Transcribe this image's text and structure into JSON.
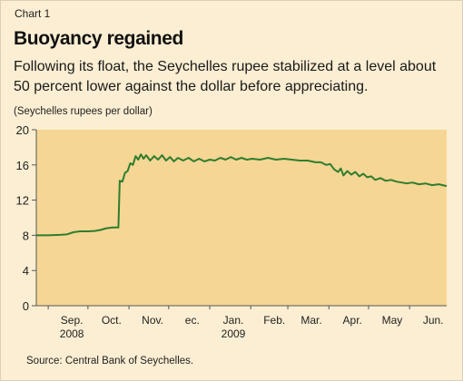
{
  "header": {
    "label": "Chart 1",
    "title": "Buoyancy regained",
    "subtitle": "Following its float, the Seychelles rupee stabilized at a level about 50 percent lower against the dollar before appreciating.",
    "unit": "(Seychelles rupees per dollar)"
  },
  "footer": {
    "source": "Source: Central Bank of Seychelles."
  },
  "colors": {
    "plot_bg": "#f6d694",
    "line": "#2e7d2e",
    "axis": "#555555"
  },
  "chart_data": {
    "type": "line",
    "ylabel": "(Seychelles rupees per dollar)",
    "ylim": [
      0,
      20
    ],
    "yticks": [
      0,
      4,
      8,
      12,
      16,
      20
    ],
    "xlim": [
      "2008-08-23",
      "2009-06-29"
    ],
    "xtick_labels": [
      {
        "date": "2008-09-01",
        "line1": "Sep.",
        "line2": "2008"
      },
      {
        "date": "2008-10-01",
        "line1": "Oct.",
        "line2": ""
      },
      {
        "date": "2008-11-01",
        "line1": "Nov.",
        "line2": ""
      },
      {
        "date": "2008-12-01",
        "line1": "ec.",
        "line2": ""
      },
      {
        "date": "2009-01-01",
        "line1": "Jan.",
        "line2": "2009"
      },
      {
        "date": "2009-02-01",
        "line1": "Feb.",
        "line2": ""
      },
      {
        "date": "2009-03-01",
        "line1": "Mar.",
        "line2": ""
      },
      {
        "date": "2009-04-01",
        "line1": "Apr.",
        "line2": ""
      },
      {
        "date": "2009-05-01",
        "line1": "May",
        "line2": ""
      },
      {
        "date": "2009-06-01",
        "line1": "Jun.",
        "line2": ""
      }
    ],
    "grid": false,
    "series": [
      {
        "name": "",
        "points": [
          [
            "2008-08-23",
            8.0
          ],
          [
            "2008-09-01",
            8.0
          ],
          [
            "2008-09-10",
            8.05
          ],
          [
            "2008-09-15",
            8.1
          ],
          [
            "2008-09-20",
            8.35
          ],
          [
            "2008-09-25",
            8.45
          ],
          [
            "2008-10-01",
            8.45
          ],
          [
            "2008-10-06",
            8.5
          ],
          [
            "2008-10-10",
            8.6
          ],
          [
            "2008-10-15",
            8.8
          ],
          [
            "2008-10-20",
            8.9
          ],
          [
            "2008-10-24",
            8.9
          ],
          [
            "2008-10-25",
            14.2
          ],
          [
            "2008-10-27",
            14.1
          ],
          [
            "2008-10-29",
            15.1
          ],
          [
            "2008-10-31",
            15.3
          ],
          [
            "2008-11-02",
            16.2
          ],
          [
            "2008-11-04",
            16.0
          ],
          [
            "2008-11-06",
            17.0
          ],
          [
            "2008-11-08",
            16.6
          ],
          [
            "2008-11-10",
            17.2
          ],
          [
            "2008-11-12",
            16.7
          ],
          [
            "2008-11-14",
            17.1
          ],
          [
            "2008-11-17",
            16.5
          ],
          [
            "2008-11-20",
            17.0
          ],
          [
            "2008-11-23",
            16.6
          ],
          [
            "2008-11-26",
            17.1
          ],
          [
            "2008-11-29",
            16.5
          ],
          [
            "2008-12-02",
            16.9
          ],
          [
            "2008-12-05",
            16.4
          ],
          [
            "2008-12-08",
            16.8
          ],
          [
            "2008-12-12",
            16.5
          ],
          [
            "2008-12-16",
            16.8
          ],
          [
            "2008-12-20",
            16.4
          ],
          [
            "2008-12-24",
            16.7
          ],
          [
            "2008-12-28",
            16.4
          ],
          [
            "2009-01-01",
            16.6
          ],
          [
            "2009-01-05",
            16.5
          ],
          [
            "2009-01-09",
            16.8
          ],
          [
            "2009-01-13",
            16.6
          ],
          [
            "2009-01-17",
            16.9
          ],
          [
            "2009-01-21",
            16.6
          ],
          [
            "2009-01-25",
            16.8
          ],
          [
            "2009-01-29",
            16.6
          ],
          [
            "2009-02-02",
            16.7
          ],
          [
            "2009-02-08",
            16.6
          ],
          [
            "2009-02-14",
            16.8
          ],
          [
            "2009-02-20",
            16.6
          ],
          [
            "2009-02-26",
            16.7
          ],
          [
            "2009-03-04",
            16.6
          ],
          [
            "2009-03-10",
            16.5
          ],
          [
            "2009-03-16",
            16.5
          ],
          [
            "2009-03-22",
            16.3
          ],
          [
            "2009-03-26",
            16.3
          ],
          [
            "2009-03-30",
            16.0
          ],
          [
            "2009-04-02",
            16.1
          ],
          [
            "2009-04-05",
            15.5
          ],
          [
            "2009-04-08",
            15.2
          ],
          [
            "2009-04-10",
            15.6
          ],
          [
            "2009-04-12",
            14.8
          ],
          [
            "2009-04-15",
            15.3
          ],
          [
            "2009-04-18",
            14.9
          ],
          [
            "2009-04-21",
            15.2
          ],
          [
            "2009-04-24",
            14.7
          ],
          [
            "2009-04-27",
            15.0
          ],
          [
            "2009-04-30",
            14.6
          ],
          [
            "2009-05-03",
            14.7
          ],
          [
            "2009-05-06",
            14.3
          ],
          [
            "2009-05-10",
            14.5
          ],
          [
            "2009-05-14",
            14.2
          ],
          [
            "2009-05-18",
            14.3
          ],
          [
            "2009-05-22",
            14.1
          ],
          [
            "2009-05-26",
            14.0
          ],
          [
            "2009-05-30",
            13.9
          ],
          [
            "2009-06-03",
            14.0
          ],
          [
            "2009-06-08",
            13.8
          ],
          [
            "2009-06-13",
            13.9
          ],
          [
            "2009-06-18",
            13.7
          ],
          [
            "2009-06-23",
            13.8
          ],
          [
            "2009-06-29",
            13.6
          ]
        ]
      }
    ]
  }
}
